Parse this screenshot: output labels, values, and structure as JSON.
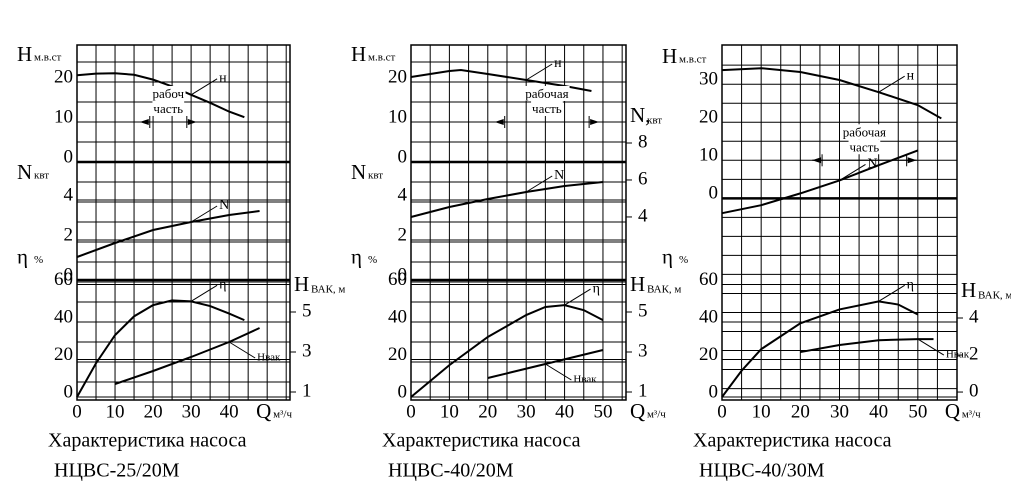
{
  "chart_data": [
    {
      "type": "line",
      "title": "Характеристика насоса",
      "subtitle": "НЦВС-25/20М",
      "xlabel": "Q",
      "xunit": "м³/ч",
      "xlim": [
        0,
        56
      ],
      "xticks": [
        0,
        10,
        20,
        30,
        40
      ],
      "grid": true,
      "axes": [
        {
          "label": "Н",
          "unit": "м.в.ст",
          "side": "left",
          "ylim": [
            -59.5,
            29.25
          ],
          "yticks": [
            0,
            10,
            20
          ],
          "series": [
            {
              "name": "н",
              "color": "#000000",
              "x": [
                0,
                5,
                10,
                15,
                20,
                25,
                30,
                35,
                40,
                44
              ],
              "values": [
                21.7,
                22.1,
                22.2,
                21.8,
                20.6,
                18.9,
                16.8,
                14.8,
                12.6,
                11.2
              ]
            }
          ],
          "work_range": {
            "label": [
              "рабоч",
              "часть"
            ],
            "x": [
              16.5,
              31.5
            ]
          }
        },
        {
          "label": "N",
          "unit": "квт",
          "side": "left",
          "ylim": [
            -6,
            11.75
          ],
          "yticks": [
            0,
            2,
            4
          ],
          "series": [
            {
              "name": "N",
              "color": "#000000",
              "x": [
                0,
                10,
                20,
                30,
                40,
                48
              ],
              "values": [
                1.15,
                1.85,
                2.5,
                2.9,
                3.25,
                3.45
              ]
            }
          ]
        },
        {
          "label": "η",
          "unit": "%",
          "side": "left",
          "ylim": [
            -1.6,
            187.7
          ],
          "yticks": [
            0,
            20,
            40,
            60
          ],
          "series": [
            {
              "name": "η",
              "color": "#000000",
              "x": [
                0,
                5,
                10,
                15,
                20,
                25,
                30,
                35,
                40,
                44
              ],
              "values": [
                0,
                18,
                33,
                43,
                49,
                51.5,
                51,
                48.5,
                44.5,
                41
              ]
            }
          ]
        },
        {
          "label": "Н",
          "unit": "ВАК, м",
          "side": "right",
          "ylim": [
            0.6,
            18.35
          ],
          "yticks": [
            1,
            3,
            5
          ],
          "series": [
            {
              "name": "Нвак",
              "color": "#000000",
              "x": [
                10,
                20,
                30,
                40,
                48
              ],
              "values": [
                1.4,
                2.05,
                2.75,
                3.5,
                4.2
              ]
            }
          ]
        }
      ]
    },
    {
      "type": "line",
      "title": "Характеристика насоса",
      "subtitle": "НЦВС-40/20М",
      "xlabel": "Q",
      "xunit": "м³/ч",
      "xlim": [
        0,
        56
      ],
      "xticks": [
        0,
        10,
        20,
        30,
        40,
        50
      ],
      "grid": true,
      "axes": [
        {
          "label": "Н",
          "unit": "м.в.ст",
          "side": "left",
          "ylim": [
            -59.5,
            29.25
          ],
          "yticks": [
            0,
            10,
            20
          ],
          "series": [
            {
              "name": "н",
              "color": "#000000",
              "x": [
                0,
                10,
                13,
                20,
                30,
                40,
                47
              ],
              "values": [
                21.25,
                22.75,
                23,
                22,
                20.5,
                19,
                17.75
              ]
            }
          ],
          "work_range": {
            "label": [
              "рабочая",
              "часть"
            ],
            "x": [
              21.8,
              49
            ]
          }
        },
        {
          "label": "N",
          "unit": "квт",
          "side": "left",
          "ylim": [
            -6,
            11.75
          ],
          "yticks": [
            0,
            2,
            4
          ],
          "series": [
            {
              "name": "N",
              "color": "#000000",
              "x": [
                0,
                10,
                20,
                30,
                40,
                50
              ],
              "values": [
                3.15,
                3.65,
                4.05,
                4.4,
                4.7,
                4.9
              ]
            }
          ]
        },
        {
          "label": "N,",
          "unit": "квт",
          "side": "right",
          "ylim": [
            -5.9,
            13.3
          ],
          "yticks": [
            4,
            6,
            8
          ],
          "series": []
        },
        {
          "label": "η",
          "unit": "%",
          "side": "left",
          "ylim": [
            -1.6,
            187.7
          ],
          "yticks": [
            0,
            20,
            40,
            60
          ],
          "series": [
            {
              "name": "η",
              "color": "#000000",
              "x": [
                0,
                10,
                20,
                30,
                35,
                40,
                45,
                50
              ],
              "values": [
                0,
                17,
                32,
                43.7,
                48,
                49,
                46.3,
                41
              ]
            }
          ]
        },
        {
          "label": "Н",
          "unit": "ВАК, м",
          "side": "right",
          "ylim": [
            0.6,
            18.35
          ],
          "yticks": [
            1,
            3,
            5
          ],
          "series": [
            {
              "name": "Нвак",
              "color": "#000000",
              "x": [
                20,
                35,
                50
              ],
              "values": [
                1.7,
                2.4,
                3.1
              ]
            }
          ]
        }
      ]
    },
    {
      "type": "line",
      "title": "Характеристика насоса",
      "subtitle": "НЦВС-40/30М",
      "xlabel": "Q",
      "xunit": "м³/ч",
      "xlim": [
        0,
        60
      ],
      "xticks": [
        0,
        10,
        20,
        30,
        40,
        50
      ],
      "grid": true,
      "axes": [
        {
          "label": "Н",
          "unit": "м.в.ст",
          "side": "left",
          "ylim": [
            -53,
            40.3
          ],
          "yticks": [
            0,
            10,
            20,
            30
          ],
          "series": [
            {
              "name": "н",
              "color": "#000000",
              "x": [
                0,
                10,
                20,
                30,
                40,
                50,
                56
              ],
              "values": [
                33.7,
                34.2,
                33.2,
                31.1,
                27.9,
                24.5,
                21
              ]
            },
            {
              "name": "N",
              "color": "#000000",
              "x": [
                0,
                10,
                20,
                30,
                40,
                50
              ],
              "values": [
                -3.9,
                -1.8,
                1.3,
                4.7,
                8.7,
                12.6
              ]
            }
          ],
          "work_range": {
            "label": [
              "рабочая",
              "часть"
            ],
            "x": [
              23,
              49.7
            ]
          }
        },
        {
          "label": "η",
          "unit": "%",
          "side": "left",
          "ylim": [
            -1.6,
            187.7
          ],
          "yticks": [
            0,
            20,
            40,
            60
          ],
          "series": [
            {
              "name": "η",
              "color": "#000000",
              "x": [
                0,
                5,
                10,
                20,
                30,
                40,
                45,
                50
              ],
              "values": [
                0,
                14,
                25.5,
                39.3,
                46.7,
                51,
                49.3,
                44
              ]
            }
          ]
        },
        {
          "label": "Н",
          "unit": "ВАК, м",
          "side": "right",
          "ylim": [
            -0.43,
            18.75
          ],
          "yticks": [
            0,
            2,
            4
          ],
          "series": [
            {
              "name": "Нвак",
              "color": "#000000",
              "x": [
                20,
                30,
                40,
                50,
                54
              ],
              "values": [
                2.16,
                2.54,
                2.8,
                2.86,
                2.86
              ]
            }
          ]
        }
      ]
    }
  ]
}
